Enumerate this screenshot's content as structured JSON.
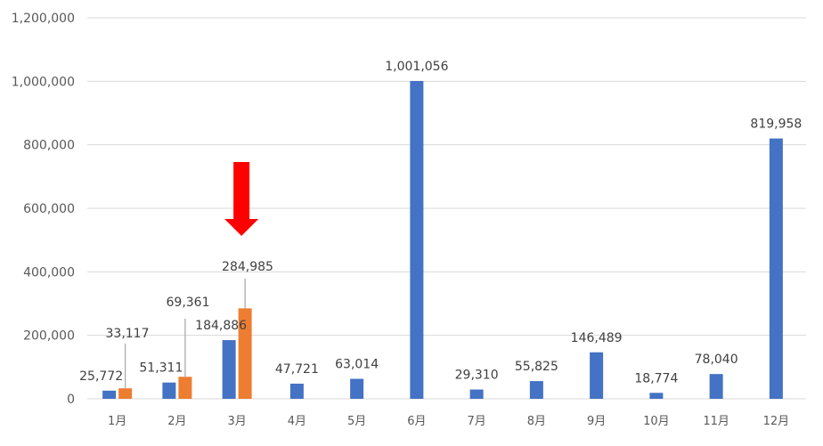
{
  "chart_data": {
    "type": "bar",
    "categories": [
      "1月",
      "2月",
      "3月",
      "4月",
      "5月",
      "6月",
      "7月",
      "8月",
      "9月",
      "10月",
      "11月",
      "12月"
    ],
    "series": [
      {
        "values": [
          25772,
          51311,
          184886,
          47721,
          63014,
          1001056,
          29310,
          55825,
          146489,
          18774,
          78040,
          819958
        ],
        "labels": [
          "25,772",
          "51,311",
          "184,886",
          "47,721",
          "63,014",
          "1,001,056",
          "29,310",
          "55,825",
          "146,489",
          "18,774",
          "78,040",
          "819,958"
        ],
        "color": "#4472C4"
      },
      {
        "values": [
          33117,
          69361,
          284985,
          null,
          null,
          null,
          null,
          null,
          null,
          null,
          null,
          null
        ],
        "labels": [
          "33,117",
          "69,361",
          "284,985",
          null,
          null,
          null,
          null,
          null,
          null,
          null,
          null,
          null
        ],
        "color": "#ED7D31"
      }
    ],
    "yticks": [
      "0",
      "200,000",
      "400,000",
      "600,000",
      "800,000",
      "1,000,000",
      "1,200,000"
    ],
    "ylim": [
      0,
      1200000
    ],
    "grid": true,
    "gridline_color": "#D9D9D9",
    "annotation": {
      "type": "arrow",
      "color": "#FF0000",
      "points_to_category": "3月"
    }
  }
}
